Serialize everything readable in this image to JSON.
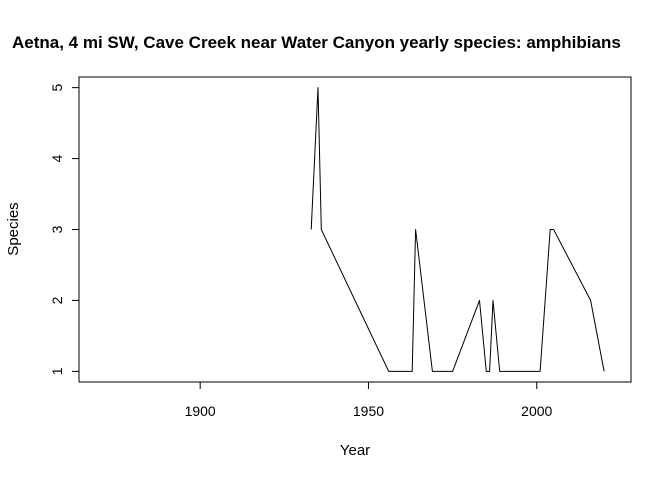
{
  "chart_data": {
    "type": "line",
    "title": "Aetna, 4 mi SW, Cave Creek near Water Canyon yearly species: amphibians",
    "xlabel": "Year",
    "ylabel": "Species",
    "xlim": [
      1864,
      2028
    ],
    "ylim": [
      0.85,
      5.15
    ],
    "x_ticks": [
      "1900",
      "1950",
      "2000"
    ],
    "y_ticks": [
      "1",
      "2",
      "3",
      "4",
      "5"
    ],
    "series": [
      {
        "x": [
          1933,
          1935,
          1936,
          1956,
          1963,
          1964,
          1969,
          1975,
          1983,
          1985,
          1986,
          1987,
          1989,
          2001,
          2004,
          2005,
          2016,
          2020
        ],
        "y": [
          3,
          5,
          3,
          1,
          1,
          3,
          1,
          1,
          2,
          1,
          1,
          2,
          1,
          1,
          3,
          3,
          2,
          1
        ]
      }
    ],
    "baseline": {
      "x": [
        1864,
        2028
      ],
      "y": [
        0.85,
        0.85
      ]
    },
    "colors": {
      "line": "#000000",
      "axis": "#000000",
      "background": "#ffffff"
    }
  }
}
